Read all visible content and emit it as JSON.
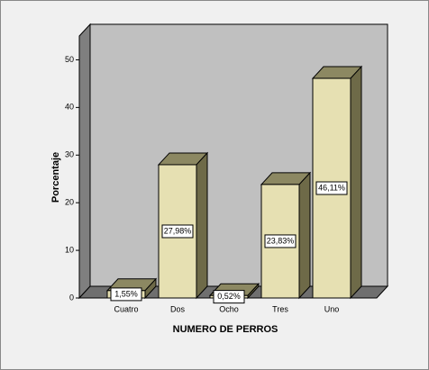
{
  "chart_data": {
    "type": "bar3d",
    "x_label": "NUMERO DE PERROS",
    "y_label": "Porcentaje",
    "categories": [
      "Cuatro",
      "Dos",
      "Ocho",
      "Tres",
      "Uno"
    ],
    "values": [
      1.55,
      27.98,
      0.52,
      23.83,
      46.11
    ],
    "value_labels": [
      "1,55%",
      "27,98%",
      "0,52%",
      "23,83%",
      "46,11%"
    ],
    "color": "#e6e0b2",
    "ylim": [
      0,
      55
    ],
    "yticks": [
      0,
      10,
      20,
      30,
      40,
      50
    ]
  }
}
